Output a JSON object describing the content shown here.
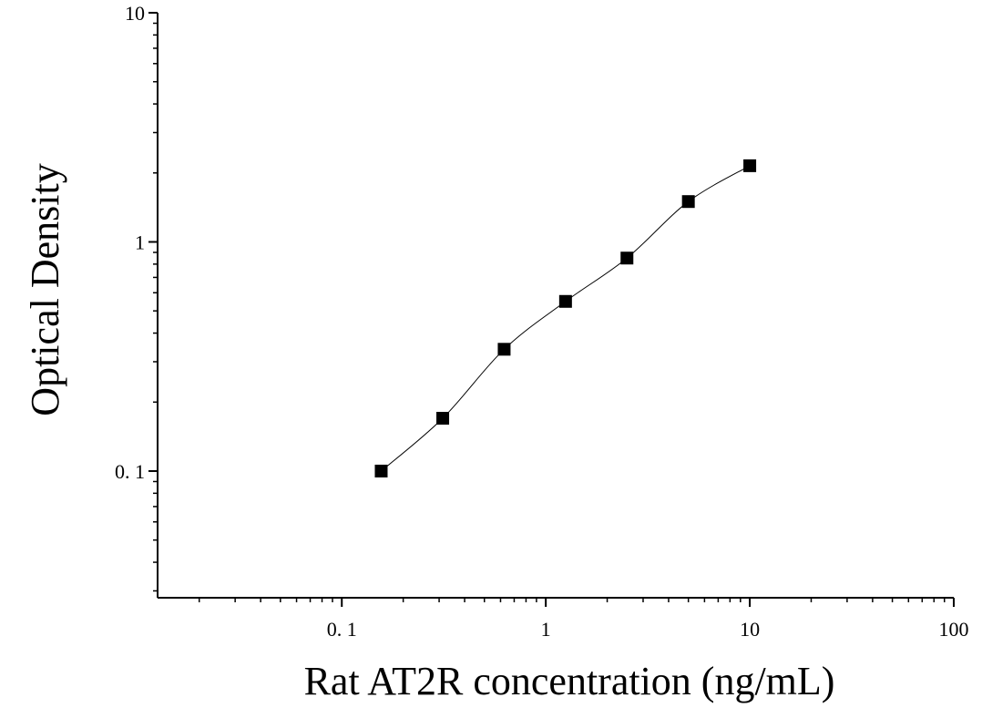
{
  "chart_data": {
    "type": "scatter",
    "title": "",
    "xlabel": "Rat AT2R concentration (ng/mL)",
    "ylabel": "Optical Density",
    "x_scale": "log",
    "y_scale": "log",
    "xlim": [
      0.0125,
      100
    ],
    "ylim": [
      0.028,
      10
    ],
    "x_ticks": [
      0.1,
      1,
      10,
      100
    ],
    "x_tick_labels": [
      "0. 1",
      "1",
      "10",
      "100"
    ],
    "y_ticks": [
      0.1,
      1,
      10
    ],
    "y_tick_labels": [
      "0. 1",
      "1",
      "10"
    ],
    "grid": false,
    "legend": "none",
    "marker": "square",
    "marker_color": "#000000",
    "fit_line": "smooth curve",
    "series": [
      {
        "x": [
          0.156,
          0.3125,
          0.625,
          1.25,
          2.5,
          5,
          10
        ],
        "y": [
          0.1,
          0.17,
          0.34,
          0.55,
          0.85,
          1.5,
          2.15
        ]
      }
    ]
  }
}
